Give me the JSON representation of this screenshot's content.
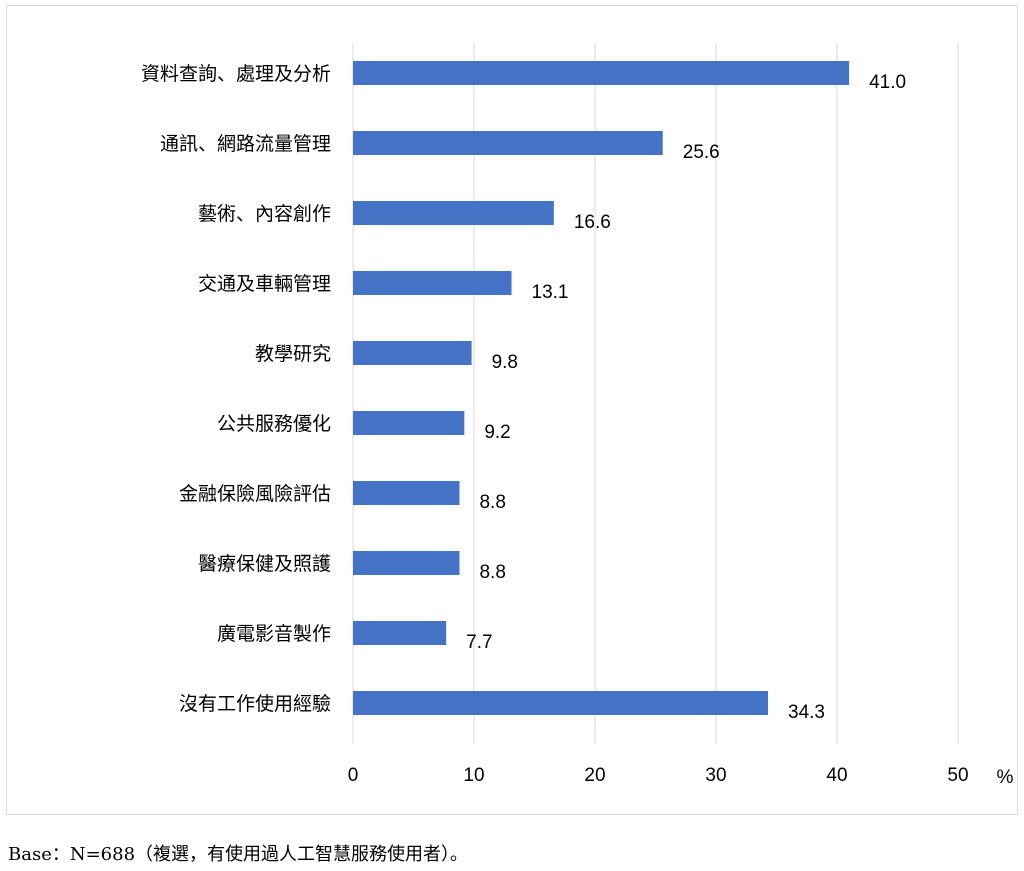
{
  "chart_data": {
    "type": "bar",
    "orientation": "horizontal",
    "categories": [
      "資料查詢、處理及分析",
      "通訊、網路流量管理",
      "藝術、內容創作",
      "交通及車輛管理",
      "教學研究",
      "公共服務優化",
      "金融保險風險評估",
      "醫療保健及照護",
      "廣電影音製作",
      "沒有工作使用經驗"
    ],
    "values": [
      41.0,
      25.6,
      16.6,
      13.1,
      9.8,
      9.2,
      8.8,
      8.8,
      7.7,
      34.3
    ],
    "value_labels": [
      "41.0",
      "25.6",
      "16.6",
      "13.1",
      "9.8",
      "9.2",
      "8.8",
      "8.8",
      "7.7",
      "34.3"
    ],
    "xlim": [
      0,
      50
    ],
    "x_ticks": [
      "0",
      "10",
      "20",
      "30",
      "40",
      "50"
    ],
    "x_unit": "%",
    "bar_color": "#4472c4",
    "grid": true
  },
  "footnote": "Base：N=688（複選，有使用過人工智慧服務使用者）。"
}
